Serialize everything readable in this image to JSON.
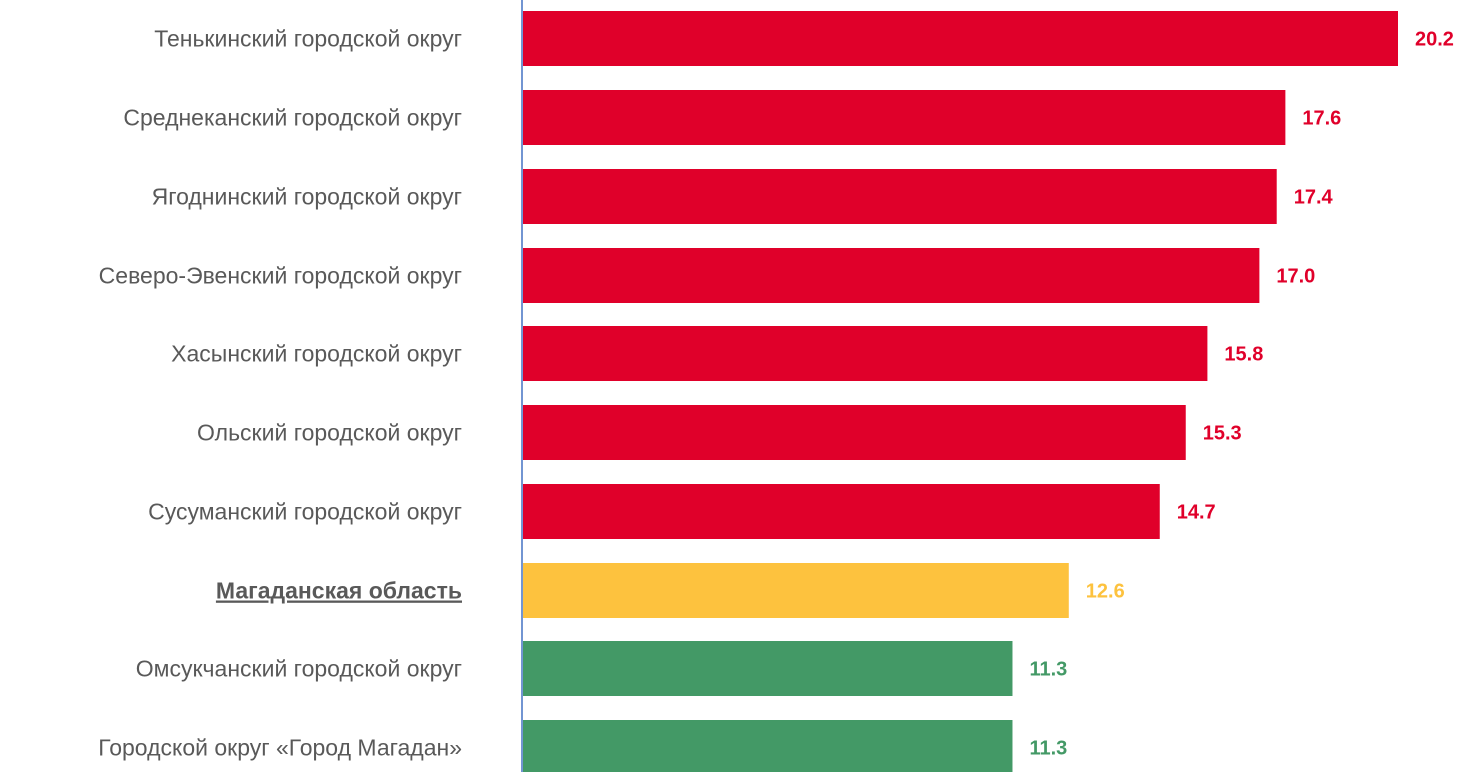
{
  "chart_data": {
    "type": "bar",
    "orientation": "horizontal",
    "categories": [
      "Тенькинский городской округ",
      "Среднеканский городской округ",
      "Ягоднинский городской округ",
      "Северо-Эвенский городской округ",
      "Хасынский городской округ",
      "Ольский городской округ",
      "Сусуманский городской округ",
      "Магаданская область",
      "Омсукчанский городской округ",
      "Городской округ  «Город Магадан»"
    ],
    "values": [
      20.2,
      17.6,
      17.4,
      17.0,
      15.8,
      15.3,
      14.7,
      12.6,
      11.3,
      11.3
    ],
    "value_labels": [
      "20.2",
      "17.6",
      "17.4",
      "17.0",
      "15.8",
      "15.3",
      "14.7",
      "12.6",
      "11.3",
      "11.3"
    ],
    "bar_colors": [
      "#e0002a",
      "#e0002a",
      "#e0002a",
      "#e0002a",
      "#e0002a",
      "#e0002a",
      "#e0002a",
      "#fdc23e",
      "#439966",
      "#439966"
    ],
    "highlighted_category": "Магаданская область",
    "xlim": [
      0,
      20.2
    ],
    "grid": false,
    "axis_color": "#4472c4",
    "category_label_color": "#595959"
  }
}
